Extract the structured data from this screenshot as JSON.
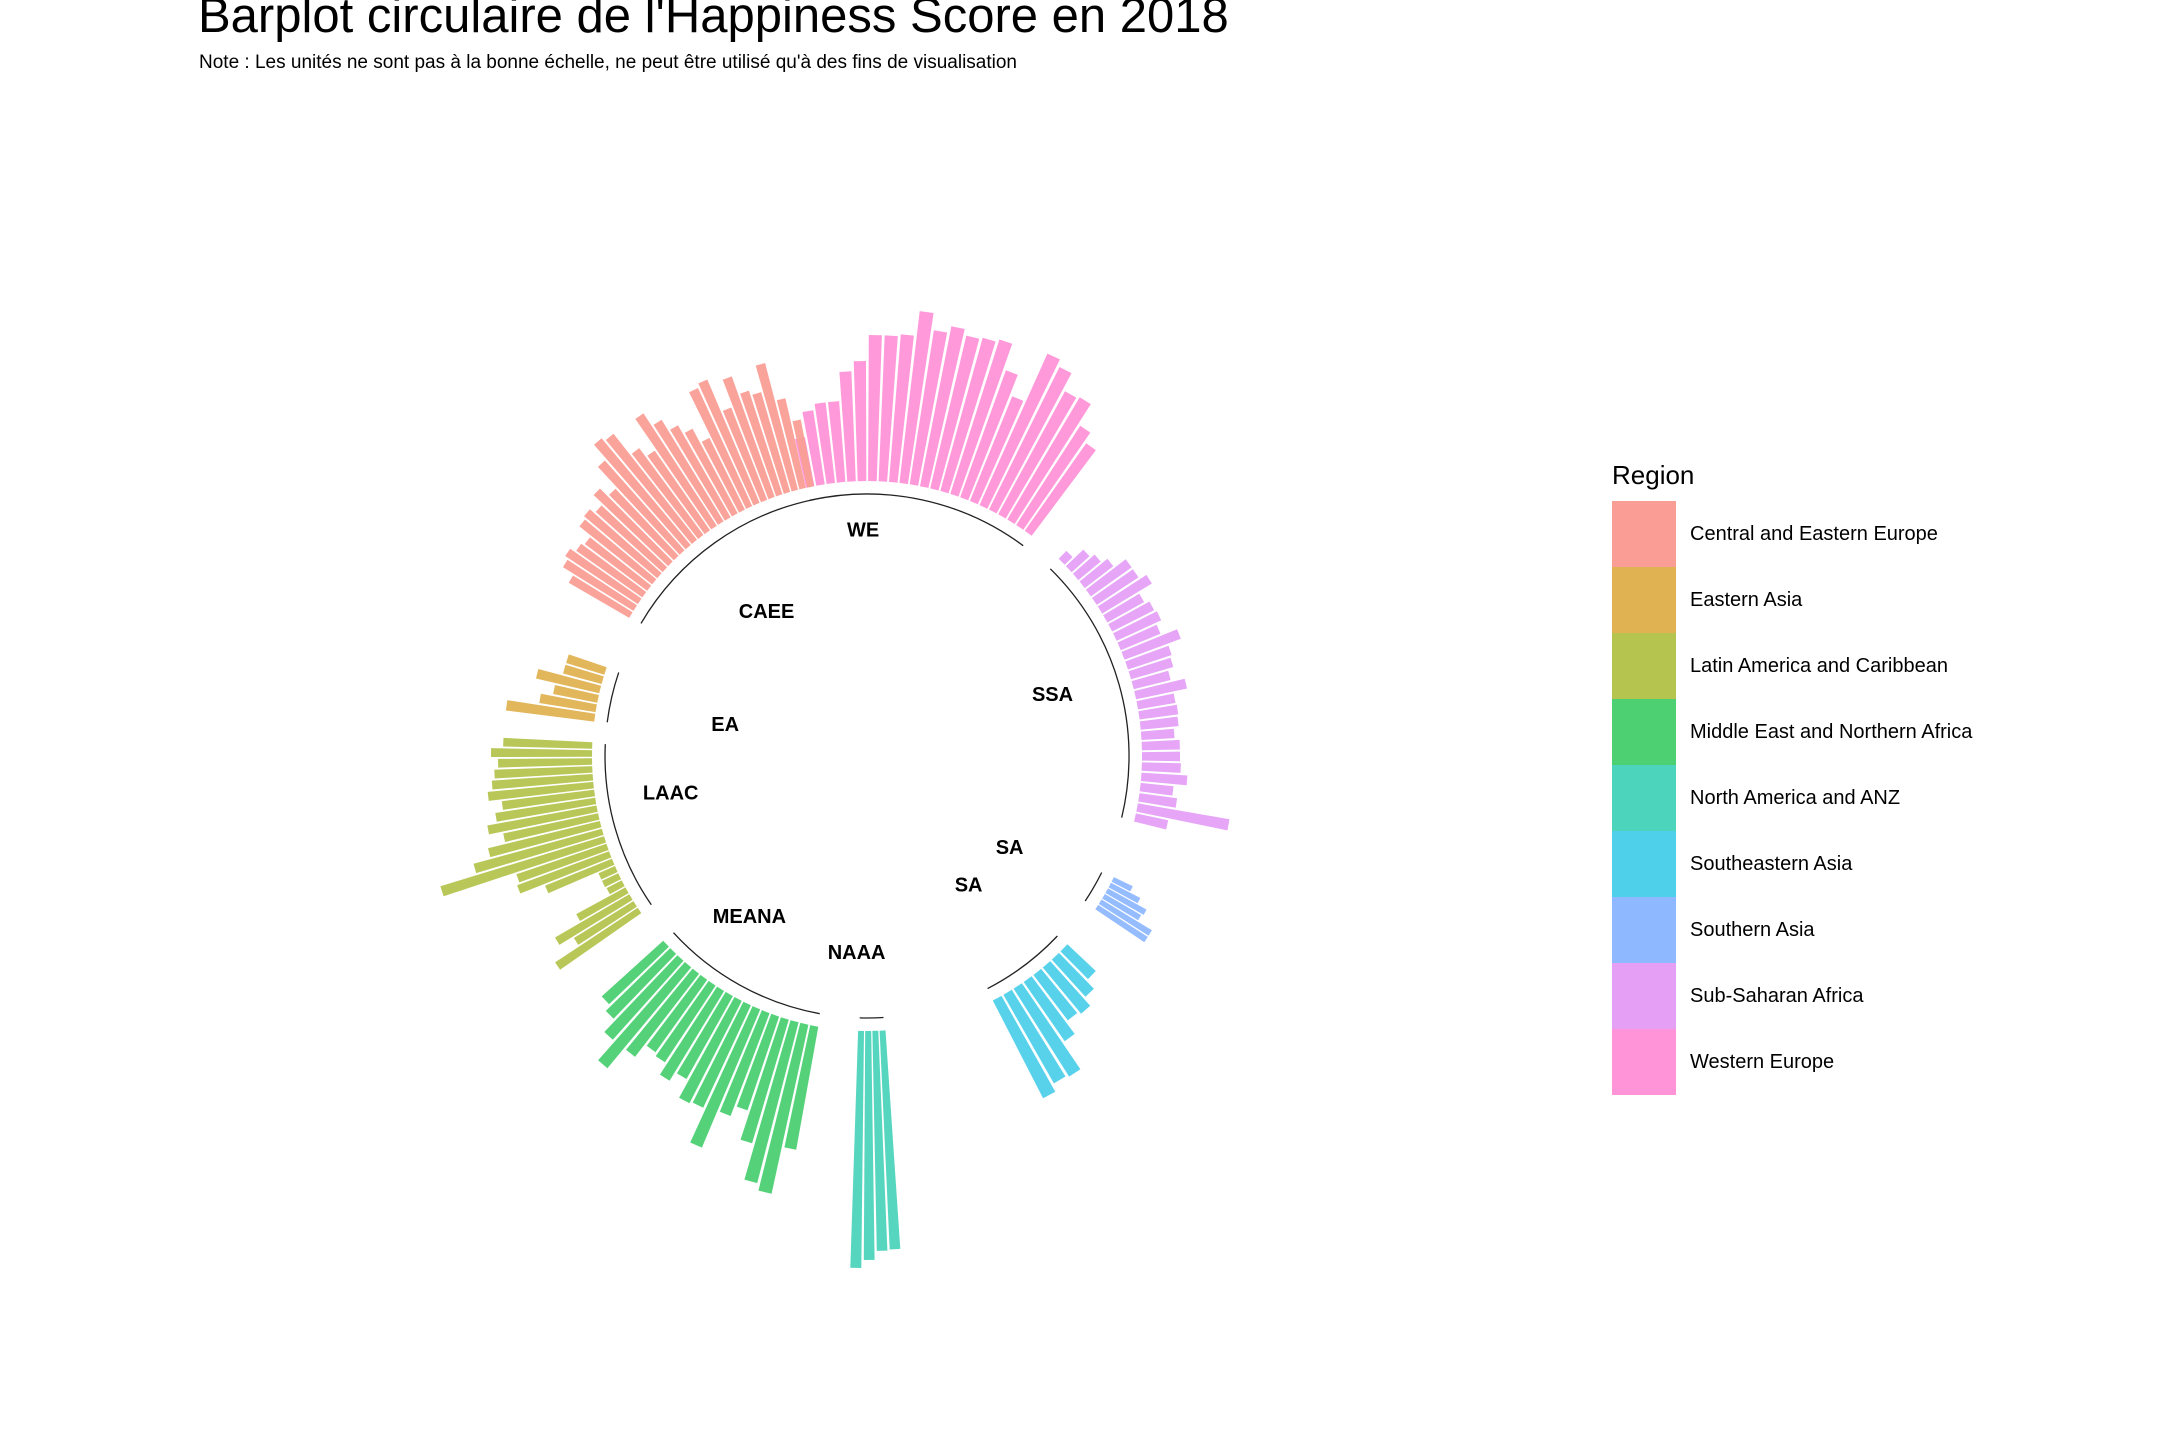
{
  "chart_data": {
    "type": "circular-bar",
    "title": "Barplot circulaire de l'Happiness Score en 2018",
    "subtitle": "Note : Les unités ne sont pas à la bonne échelle, ne peut être utilisé qu'à des fins de visualisation",
    "legend_title": "Region",
    "legend_position": "right",
    "groups": [
      {
        "name": "Western Europe",
        "label": "WE",
        "color": "#FF94D8",
        "values": [
          50,
          75,
          81,
          81,
          110,
          120,
          146,
          146,
          148,
          173,
          156,
          163,
          157,
          159,
          162,
          135,
          113,
          166,
          159,
          140,
          142,
          118,
          107
        ]
      },
      {
        "name": "Sub-Saharan Africa",
        "label": "SSA",
        "color": "#E5A0F6",
        "values": [
          11,
          24,
          29,
          36,
          50,
          50,
          58,
          42,
          47,
          49,
          43,
          60,
          46,
          44,
          38,
          52,
          38,
          39,
          38,
          33,
          38,
          38,
          39,
          46,
          33,
          38,
          93,
          33
        ]
      },
      {
        "name": "Southern Asia",
        "label": "SA",
        "color": "#8EB8FF",
        "values": [
          21,
          33,
          44,
          42,
          59,
          59
        ]
      },
      {
        "name": "Southeastern Asia",
        "label": "SA",
        "color": "#4FD0EA",
        "values": [
          39,
          50,
          60,
          57,
          72,
          104,
          102,
          110
        ]
      },
      {
        "name": "North America and ANZ",
        "label": "NAAA",
        "color": "#4DD4BC",
        "values": [
          219,
          220,
          229,
          237
        ]
      },
      {
        "name": "Middle East and Northern Africa",
        "label": "MEANA",
        "color": "#4CD072",
        "values": [
          125,
          173,
          166,
          129,
          99,
          110,
          150,
          113,
          115,
          95,
          105,
          92,
          89,
          105,
          131,
          106,
          90,
          83
        ]
      },
      {
        "name": "Latin America and Caribbean",
        "label": "LAAC",
        "color": "#B4C44E",
        "values": [
          99,
          70,
          86,
          56,
          17,
          18,
          18,
          72,
          98,
          95,
          171,
          133,
          115,
          97,
          111,
          101,
          93,
          106,
          101,
          98,
          94,
          101,
          89
        ]
      },
      {
        "name": "Eastern Asia",
        "label": "EA",
        "color": "#E0B252",
        "values": [
          89,
          57,
          45,
          65,
          40,
          40
        ]
      },
      {
        "name": "Central and Eastern Europe",
        "label": "CAEE",
        "color": "#FA9E95",
        "values": [
          70,
          83,
          87,
          81,
          78,
          93,
          96,
          90,
          103,
          92,
          120,
          139,
          135,
          108,
          97,
          134,
          119,
          106,
          96,
          80,
          130,
          134,
          99,
          128,
          109,
          104,
          131,
          92,
          68
        ]
      }
    ],
    "legend_order": [
      "Central and Eastern Europe",
      "Eastern Asia",
      "Latin America and Caribbean",
      "Middle East and Northern Africa",
      "North America and ANZ",
      "Southeastern Asia",
      "Southern Asia",
      "Sub-Saharan Africa",
      "Western Europe"
    ],
    "legend_colors": [
      "#FA9E95",
      "#E0B252",
      "#B4C44E",
      "#4CD072",
      "#4DD4BC",
      "#4FD0EA",
      "#8EB8FF",
      "#E5A0F6",
      "#FF94D8"
    ],
    "grid": false
  }
}
